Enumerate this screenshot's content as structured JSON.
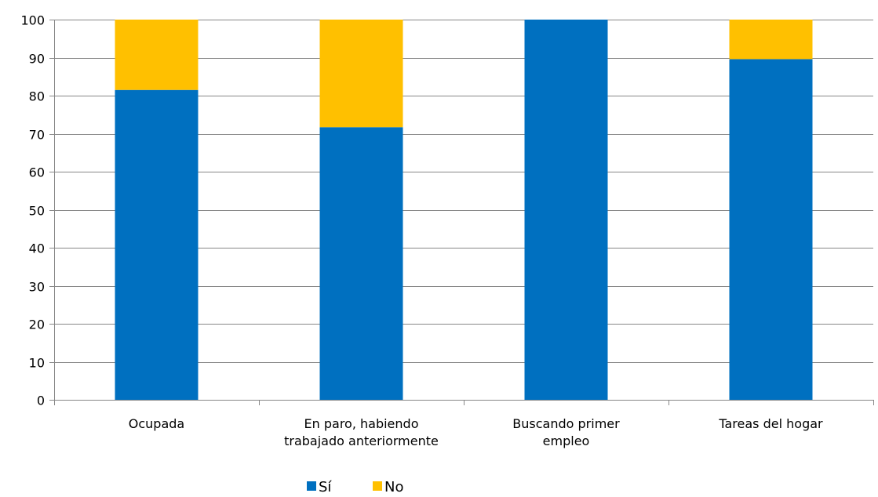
{
  "chart_data": {
    "type": "bar",
    "stacked": true,
    "categories": [
      [
        "Ocupada"
      ],
      [
        "En paro, habiendo",
        "trabajado anteriormente"
      ],
      [
        "Buscando primer",
        "empleo"
      ],
      [
        "Tareas del hogar"
      ]
    ],
    "series": [
      {
        "name": "Sí",
        "color": "#0070c0",
        "values": [
          81.5,
          71.7,
          100,
          89.6
        ]
      },
      {
        "name": "No",
        "color": "#ffc000",
        "values": [
          18.5,
          28.3,
          0,
          10.4
        ]
      }
    ],
    "ylim": [
      0,
      100
    ],
    "yticks": [
      0,
      10,
      20,
      30,
      40,
      50,
      60,
      70,
      80,
      90,
      100
    ],
    "grid": true,
    "legend_position": "bottom",
    "gridline_color": "#878787"
  }
}
